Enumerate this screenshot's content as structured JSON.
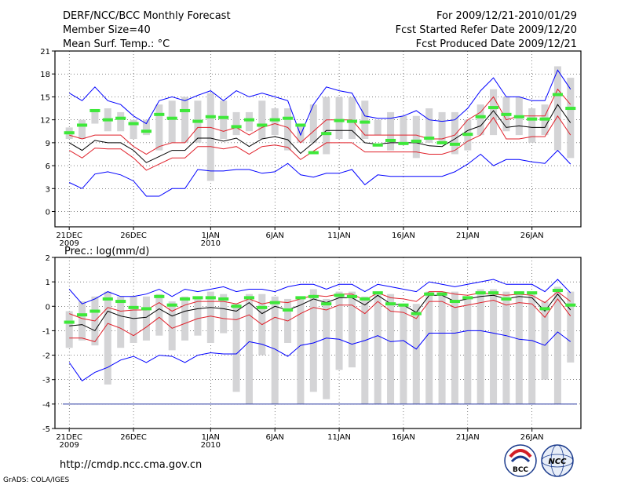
{
  "header": {
    "title": "DERF/NCC/BCC Monthly Forecast",
    "member_size": "Member Size=40",
    "variable1": "Mean Surf. Temp.: °C",
    "period": "For 2009/12/21-2010/01/29",
    "start_date": "Fcst Started Refer Date 2009/12/20",
    "produced_date": "Fcst Produced Date 2009/12/21"
  },
  "footer": {
    "url": "http://cmdp.ncc.cma.gov.cn",
    "credit": "GrADS: COLA/IGES",
    "logo_bcc": "BCC",
    "logo_ncc": "NCC"
  },
  "chart_data": [
    {
      "type": "box-ensemble",
      "title": "Mean Surf. Temp.: °C",
      "ylim": [
        -2,
        21
      ],
      "yticks": [
        0,
        3,
        6,
        9,
        12,
        15,
        18,
        21
      ],
      "xticks": [
        {
          "day": 1,
          "label": "21DEC",
          "sub": "2009"
        },
        {
          "day": 6,
          "label": "26DEC",
          "sub": ""
        },
        {
          "day": 12,
          "label": "1JAN",
          "sub": "2010"
        },
        {
          "day": 17,
          "label": "6JAN",
          "sub": ""
        },
        {
          "day": 22,
          "label": "11JAN",
          "sub": ""
        },
        {
          "day": 27,
          "label": "16JAN",
          "sub": ""
        },
        {
          "day": 32,
          "label": "21JAN",
          "sub": ""
        },
        {
          "day": 37,
          "label": "26JAN",
          "sub": ""
        }
      ],
      "days": 40,
      "box_low": [
        9.5,
        9.5,
        11.5,
        10.5,
        10.5,
        9.5,
        10,
        8,
        9,
        9,
        9,
        4,
        9.5,
        10,
        10.5,
        9.5,
        10,
        8,
        9,
        9,
        7.5,
        9.5,
        9.5,
        9.5,
        10,
        8,
        9,
        7,
        9,
        9,
        7.5,
        8,
        10,
        10,
        10.5,
        10,
        9,
        10,
        8,
        7
      ],
      "box_high": [
        11,
        12,
        13,
        13.5,
        13,
        12,
        12,
        14,
        14.5,
        15,
        14.5,
        15.5,
        14.5,
        13,
        13,
        14.5,
        13.5,
        13.5,
        11.5,
        14,
        15,
        15,
        15,
        14.5,
        12,
        13,
        12.5,
        12.5,
        13.5,
        13,
        13,
        12,
        14,
        16,
        15,
        15,
        13.5,
        14,
        19,
        17.5
      ],
      "median": [
        10.3,
        11.3,
        13.2,
        12.0,
        12.2,
        11.5,
        10.5,
        12.7,
        12.2,
        13.2,
        11.8,
        12.4,
        12.3,
        11.1,
        12.0,
        11.3,
        12.0,
        12.2,
        11.3,
        7.7,
        10.2,
        11.9,
        11.8,
        11.7,
        8.7,
        9.3,
        8.9,
        9.2,
        9.6,
        9.0,
        8.8,
        10.1,
        12.4,
        13.6,
        12.7,
        12.4,
        12.1,
        12.1,
        15.3,
        13.5
      ],
      "ens_max": [
        15.5,
        14.5,
        16.3,
        14.5,
        14,
        12.5,
        11.5,
        14.5,
        15,
        14.5,
        15.2,
        15.8,
        14.5,
        15.8,
        15,
        15.5,
        15,
        14.5,
        10,
        14,
        16.3,
        15.8,
        15.5,
        12.5,
        12.2,
        12.2,
        12.5,
        13.2,
        12,
        11.8,
        12,
        13.5,
        15.8,
        17.5,
        15,
        15,
        14.5,
        14.5,
        18.5,
        16
      ],
      "p90": [
        10,
        9.5,
        10,
        10,
        10,
        8.5,
        7.5,
        8.5,
        9,
        9,
        11,
        11,
        10.5,
        11,
        10,
        11,
        11.5,
        11,
        9,
        10.5,
        12,
        12,
        12,
        10,
        10,
        10,
        10,
        10,
        9.5,
        9.5,
        10,
        12,
        13,
        15,
        12,
        12.5,
        12.5,
        12.5,
        16,
        14
      ],
      "mean": [
        9,
        8,
        9.3,
        9,
        9,
        8,
        6.4,
        7.2,
        8,
        8,
        9.6,
        9.6,
        9.2,
        9.6,
        8.5,
        9.5,
        9.8,
        9.4,
        7.6,
        9,
        10.6,
        10.6,
        10.6,
        9,
        8.8,
        9,
        9,
        9,
        8.6,
        8.5,
        9.5,
        10.6,
        11.2,
        13.2,
        11,
        11.2,
        11,
        11,
        14,
        11.6
      ],
      "p10": [
        8,
        7,
        8.3,
        8.2,
        8.2,
        7,
        5.4,
        6.2,
        7,
        7,
        8.5,
        8.5,
        8.2,
        8.5,
        7.5,
        8.5,
        8.7,
        8.4,
        6.8,
        7.9,
        9,
        9,
        9,
        7.8,
        7.8,
        7.8,
        7.8,
        7.8,
        7.5,
        7.5,
        8,
        9.2,
        10,
        12.3,
        9.5,
        9.5,
        9.8,
        9.8,
        12.5,
        10
      ],
      "ens_min": [
        3.8,
        3,
        4.9,
        5.2,
        4.8,
        4,
        2,
        2,
        3,
        3,
        5.5,
        5.3,
        5.3,
        5.5,
        5.5,
        5,
        5.2,
        6.3,
        4.8,
        4.5,
        5,
        5,
        5.5,
        3.5,
        4.8,
        4.6,
        4.6,
        4.6,
        4.6,
        4.6,
        5.2,
        6.2,
        7.5,
        6,
        6.8,
        6.8,
        6.5,
        6.3,
        8,
        6.2
      ]
    },
    {
      "type": "box-ensemble",
      "title": "Prec.: log(mm/d)",
      "ylim": [
        -5,
        2
      ],
      "yticks": [
        -5,
        -4,
        -3,
        -2,
        -1,
        0,
        1,
        2
      ],
      "xticks": [
        {
          "day": 1,
          "label": "21DEC",
          "sub": "2009"
        },
        {
          "day": 6,
          "label": "26DEC",
          "sub": ""
        },
        {
          "day": 12,
          "label": "1JAN",
          "sub": "2010"
        },
        {
          "day": 17,
          "label": "6JAN",
          "sub": ""
        },
        {
          "day": 22,
          "label": "11JAN",
          "sub": ""
        },
        {
          "day": 27,
          "label": "16JAN",
          "sub": ""
        },
        {
          "day": 32,
          "label": "21JAN",
          "sub": ""
        },
        {
          "day": 37,
          "label": "26JAN",
          "sub": ""
        }
      ],
      "days": 40,
      "floor": -4,
      "box_low": [
        -1.7,
        -1.4,
        -1.6,
        -3.2,
        -1.7,
        -1.5,
        -1.4,
        -1.2,
        -1.8,
        -1.4,
        -1.2,
        -1.5,
        -1.1,
        -3.5,
        -4,
        -2,
        -4,
        -1.5,
        -4,
        -3.5,
        -3.8,
        -2.6,
        -2.5,
        -4,
        -4,
        -4,
        -4,
        -4,
        -4,
        -4,
        -4,
        -4,
        -4,
        -4,
        -4,
        -4,
        -4,
        -3,
        -4,
        -2.3
      ],
      "box_high": [
        -0.2,
        0.2,
        0.4,
        0.6,
        0.4,
        0.4,
        0.4,
        0.5,
        0.2,
        0.4,
        0.4,
        0.6,
        0.5,
        0.1,
        0.5,
        0.5,
        0.4,
        0.3,
        0.4,
        0.7,
        0.3,
        0.6,
        0.6,
        0.4,
        0.6,
        0.5,
        0.1,
        0.1,
        0.6,
        0.6,
        0.6,
        0.4,
        0.7,
        0.7,
        0.6,
        0.5,
        0.6,
        0.2,
        0.8,
        0.6
      ],
      "median": [
        -0.65,
        -0.35,
        -0.2,
        0.3,
        0.2,
        -0.05,
        -0.1,
        0.4,
        0.05,
        0.3,
        0.35,
        0.35,
        0.3,
        0,
        0.35,
        -0.05,
        0.15,
        -0.15,
        0.35,
        0.4,
        0.1,
        0.45,
        0.4,
        0.3,
        0.55,
        0.1,
        0.05,
        -0.3,
        0.5,
        0.5,
        0.2,
        0.35,
        0.55,
        0.55,
        0.3,
        0.55,
        0.55,
        -0.1,
        0.65,
        0.05
      ],
      "ens_max": [
        0.7,
        0.1,
        0.3,
        0.6,
        0.4,
        0.4,
        0.5,
        0.7,
        0.4,
        0.7,
        0.6,
        0.7,
        0.8,
        0.6,
        0.7,
        0.7,
        0.6,
        0.8,
        0.9,
        0.9,
        0.7,
        0.9,
        0.9,
        0.6,
        0.9,
        0.8,
        0.7,
        0.6,
        1,
        0.9,
        0.8,
        0.9,
        1,
        1.1,
        0.9,
        0.9,
        0.9,
        0.6,
        1.1,
        0.55
      ],
      "p90": [
        -0.3,
        -0.5,
        -0.6,
        -0.05,
        -0.2,
        -0.15,
        -0.15,
        0.15,
        -0.2,
        0.05,
        0.2,
        0.2,
        0.2,
        0.1,
        0.3,
        0.1,
        0.2,
        0.15,
        0.3,
        0.45,
        0.4,
        0.5,
        0.5,
        0.25,
        0.55,
        0.35,
        0.3,
        0.2,
        0.6,
        0.6,
        0.5,
        0.45,
        0.55,
        0.5,
        0.45,
        0.5,
        0.45,
        0.15,
        0.6,
        0.2
      ],
      "mean": [
        -0.8,
        -0.75,
        -1,
        -0.2,
        -0.4,
        -0.5,
        -0.45,
        -0.1,
        -0.4,
        -0.2,
        -0.1,
        -0.05,
        -0.1,
        -0.2,
        0.15,
        -0.3,
        0,
        -0.15,
        0.05,
        0.3,
        0.15,
        0.35,
        0.35,
        0.05,
        0.45,
        0.1,
        0.05,
        -0.25,
        0.45,
        0.45,
        0.2,
        0.3,
        0.4,
        0.45,
        0.3,
        0.4,
        0.35,
        -0.2,
        0.5,
        -0.15
      ],
      "p10": [
        -1.3,
        -1.3,
        -1.45,
        -0.7,
        -0.9,
        -1.2,
        -0.85,
        -0.45,
        -0.9,
        -0.7,
        -0.5,
        -0.4,
        -0.5,
        -0.55,
        -0.35,
        -0.75,
        -0.45,
        -0.6,
        -0.3,
        -0.05,
        -0.15,
        0.05,
        0.05,
        -0.3,
        0.2,
        -0.2,
        -0.25,
        -0.5,
        0.2,
        0.2,
        -0.05,
        0.05,
        0.15,
        0.25,
        0.05,
        0.15,
        0.1,
        -0.45,
        0.3,
        -0.4
      ],
      "ens_min": [
        -2.3,
        -3.05,
        -2.7,
        -2.5,
        -2.2,
        -2.05,
        -2.3,
        -2,
        -2.05,
        -2.3,
        -2,
        -1.9,
        -1.95,
        -1.95,
        -1.45,
        -1.55,
        -1.75,
        -2.05,
        -1.6,
        -1.5,
        -1.3,
        -1.35,
        -1.55,
        -1.4,
        -1.2,
        -1.45,
        -1.4,
        -1.75,
        -1.1,
        -1.1,
        -1.1,
        -1,
        -1,
        -1.1,
        -1.2,
        -1.35,
        -1.4,
        -1.6,
        -1.05,
        -1.45
      ]
    }
  ]
}
